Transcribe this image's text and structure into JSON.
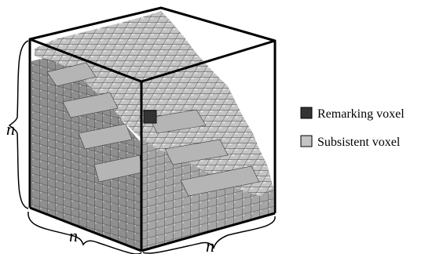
{
  "dimension_label": "n",
  "legend": {
    "items": [
      {
        "label": "Remarking voxel",
        "color": "#333333"
      },
      {
        "label": "Subsistent voxel",
        "color": "#c4c4c4"
      }
    ]
  },
  "colors": {
    "voxel_top": "#c4c4c4",
    "voxel_left": "#8f8f8f",
    "voxel_right": "#a8a8a8",
    "voxel_edge": "#3a3a3a",
    "cube_edge": "#000000"
  }
}
